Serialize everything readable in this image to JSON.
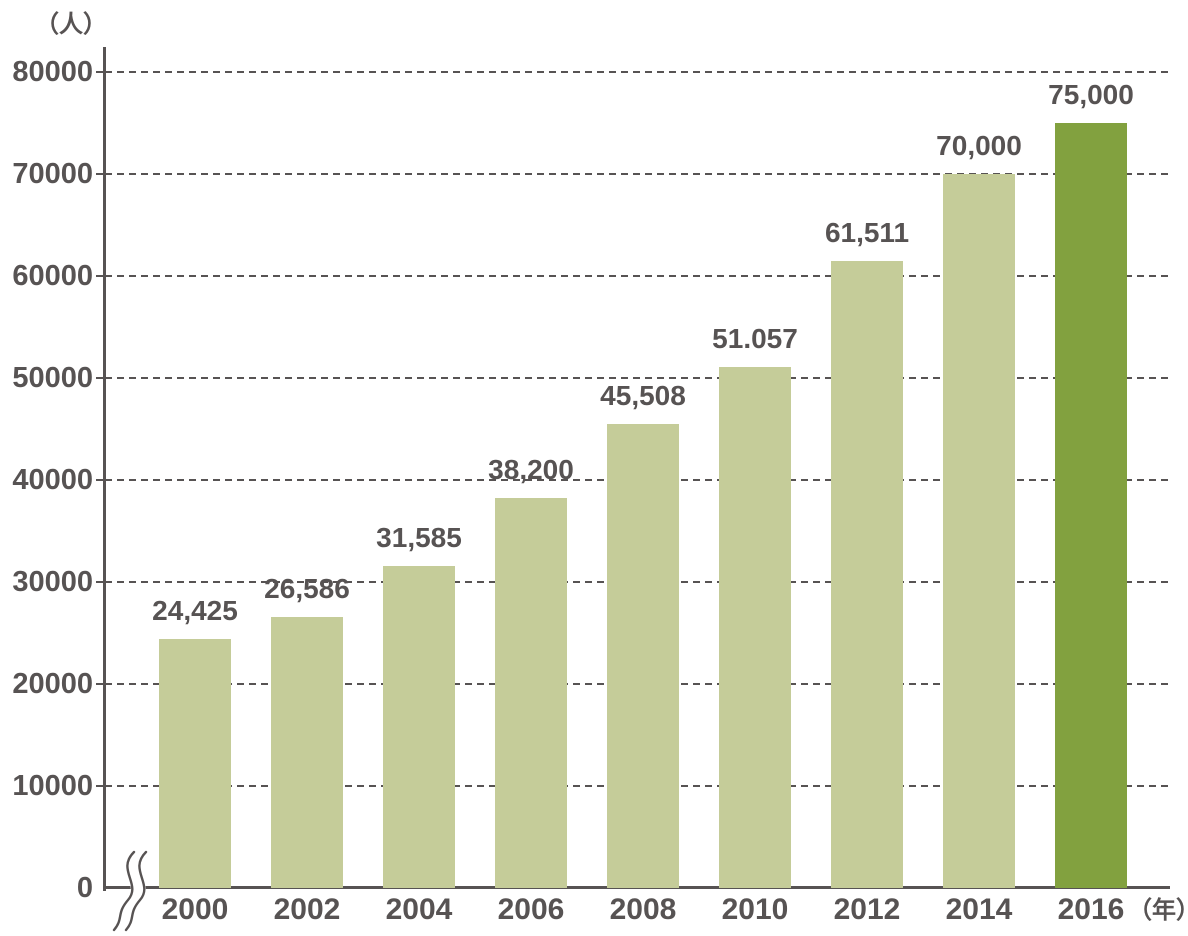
{
  "chart_data": {
    "type": "bar",
    "title": "",
    "y_unit_label": "（人）",
    "x_unit_label": "（年）",
    "categories": [
      "2000",
      "2002",
      "2004",
      "2006",
      "2008",
      "2010",
      "2012",
      "2014",
      "2016"
    ],
    "values": [
      24425,
      26586,
      31585,
      38200,
      45508,
      51057,
      61511,
      70000,
      75000
    ],
    "value_labels": [
      "24,425",
      "26,586",
      "31,585",
      "38,200",
      "45,508",
      "51.057",
      "61,511",
      "70,000",
      "75,000"
    ],
    "ylim": [
      0,
      80000
    ],
    "ytick_interval": 10000,
    "yticks": [
      {
        "value": 80000,
        "label": "80000"
      },
      {
        "value": 70000,
        "label": "70000"
      },
      {
        "value": 60000,
        "label": "60000"
      },
      {
        "value": 50000,
        "label": "50000"
      },
      {
        "value": 40000,
        "label": "40000"
      },
      {
        "value": 30000,
        "label": "30000"
      },
      {
        "value": 20000,
        "label": "20000"
      },
      {
        "value": 10000,
        "label": "10000"
      },
      {
        "value": 0,
        "label": "0"
      }
    ],
    "grid": "horizontal-dashed",
    "legend": "none",
    "axis_break_at_origin": true,
    "highlight_index": 8,
    "colors": {
      "bar": "#c5cc99",
      "highlight_bar": "#82a13f",
      "text": "#575353",
      "axis": "#575353",
      "background": "#ffffff"
    }
  }
}
